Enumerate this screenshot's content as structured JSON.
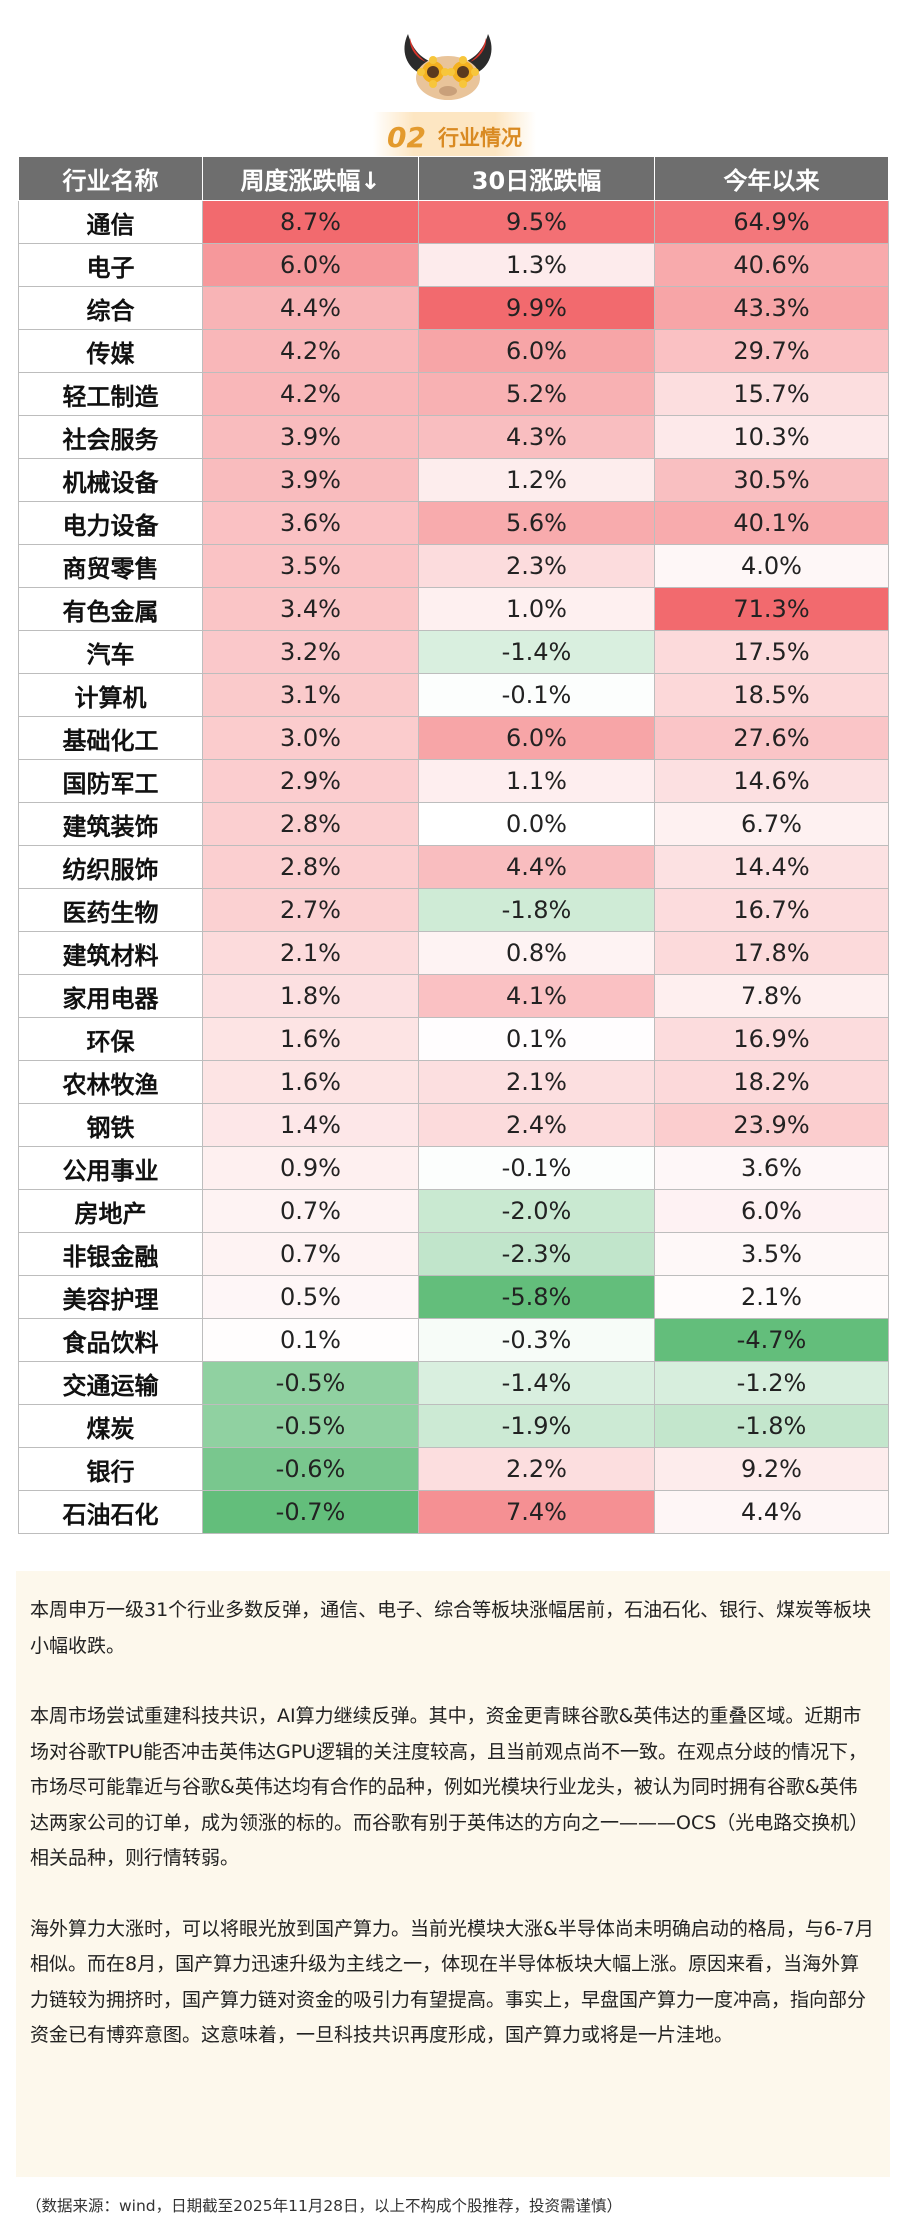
{
  "section": {
    "number": "02",
    "title": "行业情况"
  },
  "table": {
    "headers": [
      "行业名称",
      "周度涨跌幅↓",
      "30日涨跌幅",
      "今年以来"
    ],
    "rows": [
      {
        "name": "通信",
        "weekly": 8.7,
        "d30": 9.5,
        "ytd": 64.9
      },
      {
        "name": "电子",
        "weekly": 6.0,
        "d30": 1.3,
        "ytd": 40.6
      },
      {
        "name": "综合",
        "weekly": 4.4,
        "d30": 9.9,
        "ytd": 43.3
      },
      {
        "name": "传媒",
        "weekly": 4.2,
        "d30": 6.0,
        "ytd": 29.7
      },
      {
        "name": "轻工制造",
        "weekly": 4.2,
        "d30": 5.2,
        "ytd": 15.7
      },
      {
        "name": "社会服务",
        "weekly": 3.9,
        "d30": 4.3,
        "ytd": 10.3
      },
      {
        "name": "机械设备",
        "weekly": 3.9,
        "d30": 1.2,
        "ytd": 30.5
      },
      {
        "name": "电力设备",
        "weekly": 3.6,
        "d30": 5.6,
        "ytd": 40.1
      },
      {
        "name": "商贸零售",
        "weekly": 3.5,
        "d30": 2.3,
        "ytd": 4.0
      },
      {
        "name": "有色金属",
        "weekly": 3.4,
        "d30": 1.0,
        "ytd": 71.3
      },
      {
        "name": "汽车",
        "weekly": 3.2,
        "d30": -1.4,
        "ytd": 17.5
      },
      {
        "name": "计算机",
        "weekly": 3.1,
        "d30": -0.1,
        "ytd": 18.5
      },
      {
        "name": "基础化工",
        "weekly": 3.0,
        "d30": 6.0,
        "ytd": 27.6
      },
      {
        "name": "国防军工",
        "weekly": 2.9,
        "d30": 1.1,
        "ytd": 14.6
      },
      {
        "name": "建筑装饰",
        "weekly": 2.8,
        "d30": 0.0,
        "ytd": 6.7
      },
      {
        "name": "纺织服饰",
        "weekly": 2.8,
        "d30": 4.4,
        "ytd": 14.4
      },
      {
        "name": "医药生物",
        "weekly": 2.7,
        "d30": -1.8,
        "ytd": 16.7
      },
      {
        "name": "建筑材料",
        "weekly": 2.1,
        "d30": 0.8,
        "ytd": 17.8
      },
      {
        "name": "家用电器",
        "weekly": 1.8,
        "d30": 4.1,
        "ytd": 7.8
      },
      {
        "name": "环保",
        "weekly": 1.6,
        "d30": 0.1,
        "ytd": 16.9
      },
      {
        "name": "农林牧渔",
        "weekly": 1.6,
        "d30": 2.1,
        "ytd": 18.2
      },
      {
        "name": "钢铁",
        "weekly": 1.4,
        "d30": 2.4,
        "ytd": 23.9
      },
      {
        "name": "公用事业",
        "weekly": 0.9,
        "d30": -0.1,
        "ytd": 3.6
      },
      {
        "name": "房地产",
        "weekly": 0.7,
        "d30": -2.0,
        "ytd": 6.0
      },
      {
        "name": "非银金融",
        "weekly": 0.7,
        "d30": -2.3,
        "ytd": 3.5
      },
      {
        "name": "美容护理",
        "weekly": 0.5,
        "d30": -5.8,
        "ytd": 2.1
      },
      {
        "name": "食品饮料",
        "weekly": 0.1,
        "d30": -0.3,
        "ytd": -4.7
      },
      {
        "name": "交通运输",
        "weekly": -0.5,
        "d30": -1.4,
        "ytd": -1.2
      },
      {
        "name": "煤炭",
        "weekly": -0.5,
        "d30": -1.9,
        "ytd": -1.8
      },
      {
        "name": "银行",
        "weekly": -0.6,
        "d30": 2.2,
        "ytd": 9.2
      },
      {
        "name": "石油石化",
        "weekly": -0.7,
        "d30": 7.4,
        "ytd": 4.4
      }
    ]
  },
  "commentary": [
    "本周申万一级31个行业多数反弹，通信、电子、综合等板块涨幅居前，石油石化、银行、煤炭等板块小幅收跌。",
    "本周市场尝试重建科技共识，AI算力继续反弹。其中，资金更青睐谷歌&英伟达的重叠区域。近期市场对谷歌TPU能否冲击英伟达GPU逻辑的关注度较高，且当前观点尚不一致。在观点分歧的情况下，市场尽可能靠近与谷歌&英伟达均有合作的品种，例如光模块行业龙头，被认为同时拥有谷歌&英伟达两家公司的订单，成为领涨的标的。而谷歌有别于英伟达的方向之一———OCS（光电路交换机）相关品种，则行情转弱。",
    "海外算力大涨时，可以将眼光放到国产算力。当前光模块大涨&半导体尚未明确启动的格局，与6-7月相似。而在8月，国产算力迅速升级为主线之一，体现在半导体板块大幅上涨。原因来看，当海外算力链较为拥挤时，国产算力链对资金的吸引力有望提高。事实上，早盘国产算力一度冲高，指向部分资金已有博弈意图。这意味着，一旦科技共识再度形成，国产算力或将是一片洼地。"
  ],
  "source_note": "（数据来源：wind，日期截至2025年11月28日，以上不构成个股推荐，投资需谨慎）",
  "colors": {
    "header_bg": "#6e6e6e",
    "positive": "#f26a6e",
    "negative": "#63be7b",
    "accent": "#e39a2d"
  },
  "icons": {
    "logo": "ox-sunflower-icon"
  }
}
